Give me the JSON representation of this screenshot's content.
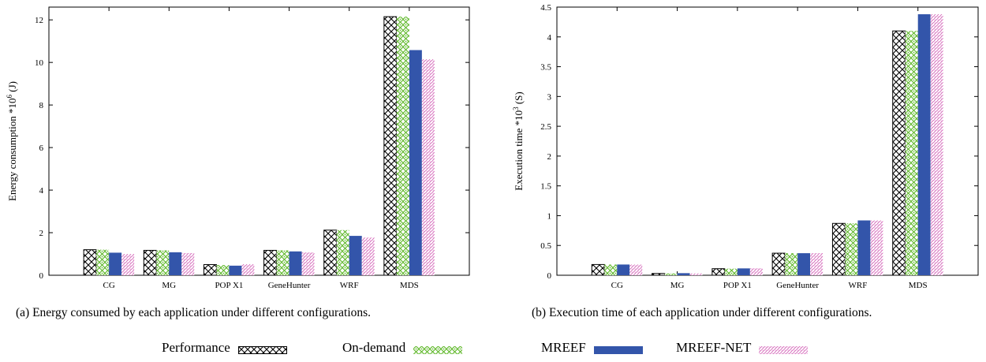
{
  "legend": [
    {
      "name": "Performance",
      "pattern": "crosshatch",
      "color": "#000000"
    },
    {
      "name": "On-demand",
      "pattern": "green-lattice",
      "color": "#66bb33"
    },
    {
      "name": "MREEF",
      "pattern": "solid",
      "color": "#3355aa"
    },
    {
      "name": "MREEF-NET",
      "pattern": "pink-dots",
      "color": "#cc44aa"
    }
  ],
  "chart_data": [
    {
      "type": "bar",
      "caption": "(a) Energy consumed by each application under different configurations.",
      "ylabel": "Energy consumption *10",
      "ylabel_exponent": "6",
      "ylabel_unit": " (J)",
      "categories": [
        "CG",
        "MG",
        "POP X1",
        "GeneHunter",
        "WRF",
        "MDS"
      ],
      "ylim": [
        0,
        12.6
      ],
      "yticks": [
        "0",
        "2",
        "4",
        "6",
        "8",
        "10",
        "12"
      ],
      "series": [
        {
          "name": "Performance",
          "values": [
            1.2,
            1.17,
            0.5,
            1.17,
            2.12,
            12.15
          ]
        },
        {
          "name": "On-demand",
          "values": [
            1.2,
            1.17,
            0.48,
            1.17,
            2.12,
            12.15
          ]
        },
        {
          "name": "MREEF",
          "values": [
            1.06,
            1.08,
            0.45,
            1.12,
            1.85,
            10.58
          ]
        },
        {
          "name": "MREEF-NET",
          "values": [
            1.0,
            1.04,
            0.52,
            1.07,
            1.77,
            10.15
          ]
        }
      ]
    },
    {
      "type": "bar",
      "caption": "(b) Execution time of each application under different configurations.",
      "ylabel": "Execution time *10",
      "ylabel_exponent": "3",
      "ylabel_unit": " (S)",
      "categories": [
        "CG",
        "MG",
        "POP X1",
        "GeneHunter",
        "WRF",
        "MDS"
      ],
      "ylim": [
        0,
        4.5
      ],
      "yticks": [
        "0",
        "0.5",
        "1",
        "1.5",
        "2",
        "2.5",
        "3",
        "3.5",
        "4",
        "4.5"
      ],
      "series": [
        {
          "name": "Performance",
          "values": [
            0.18,
            0.03,
            0.11,
            0.37,
            0.87,
            4.1
          ]
        },
        {
          "name": "On-demand",
          "values": [
            0.18,
            0.03,
            0.11,
            0.37,
            0.87,
            4.1
          ]
        },
        {
          "name": "MREEF",
          "values": [
            0.18,
            0.035,
            0.115,
            0.37,
            0.92,
            4.38
          ]
        },
        {
          "name": "MREEF-NET",
          "values": [
            0.18,
            0.03,
            0.115,
            0.37,
            0.92,
            4.38
          ]
        }
      ]
    }
  ]
}
